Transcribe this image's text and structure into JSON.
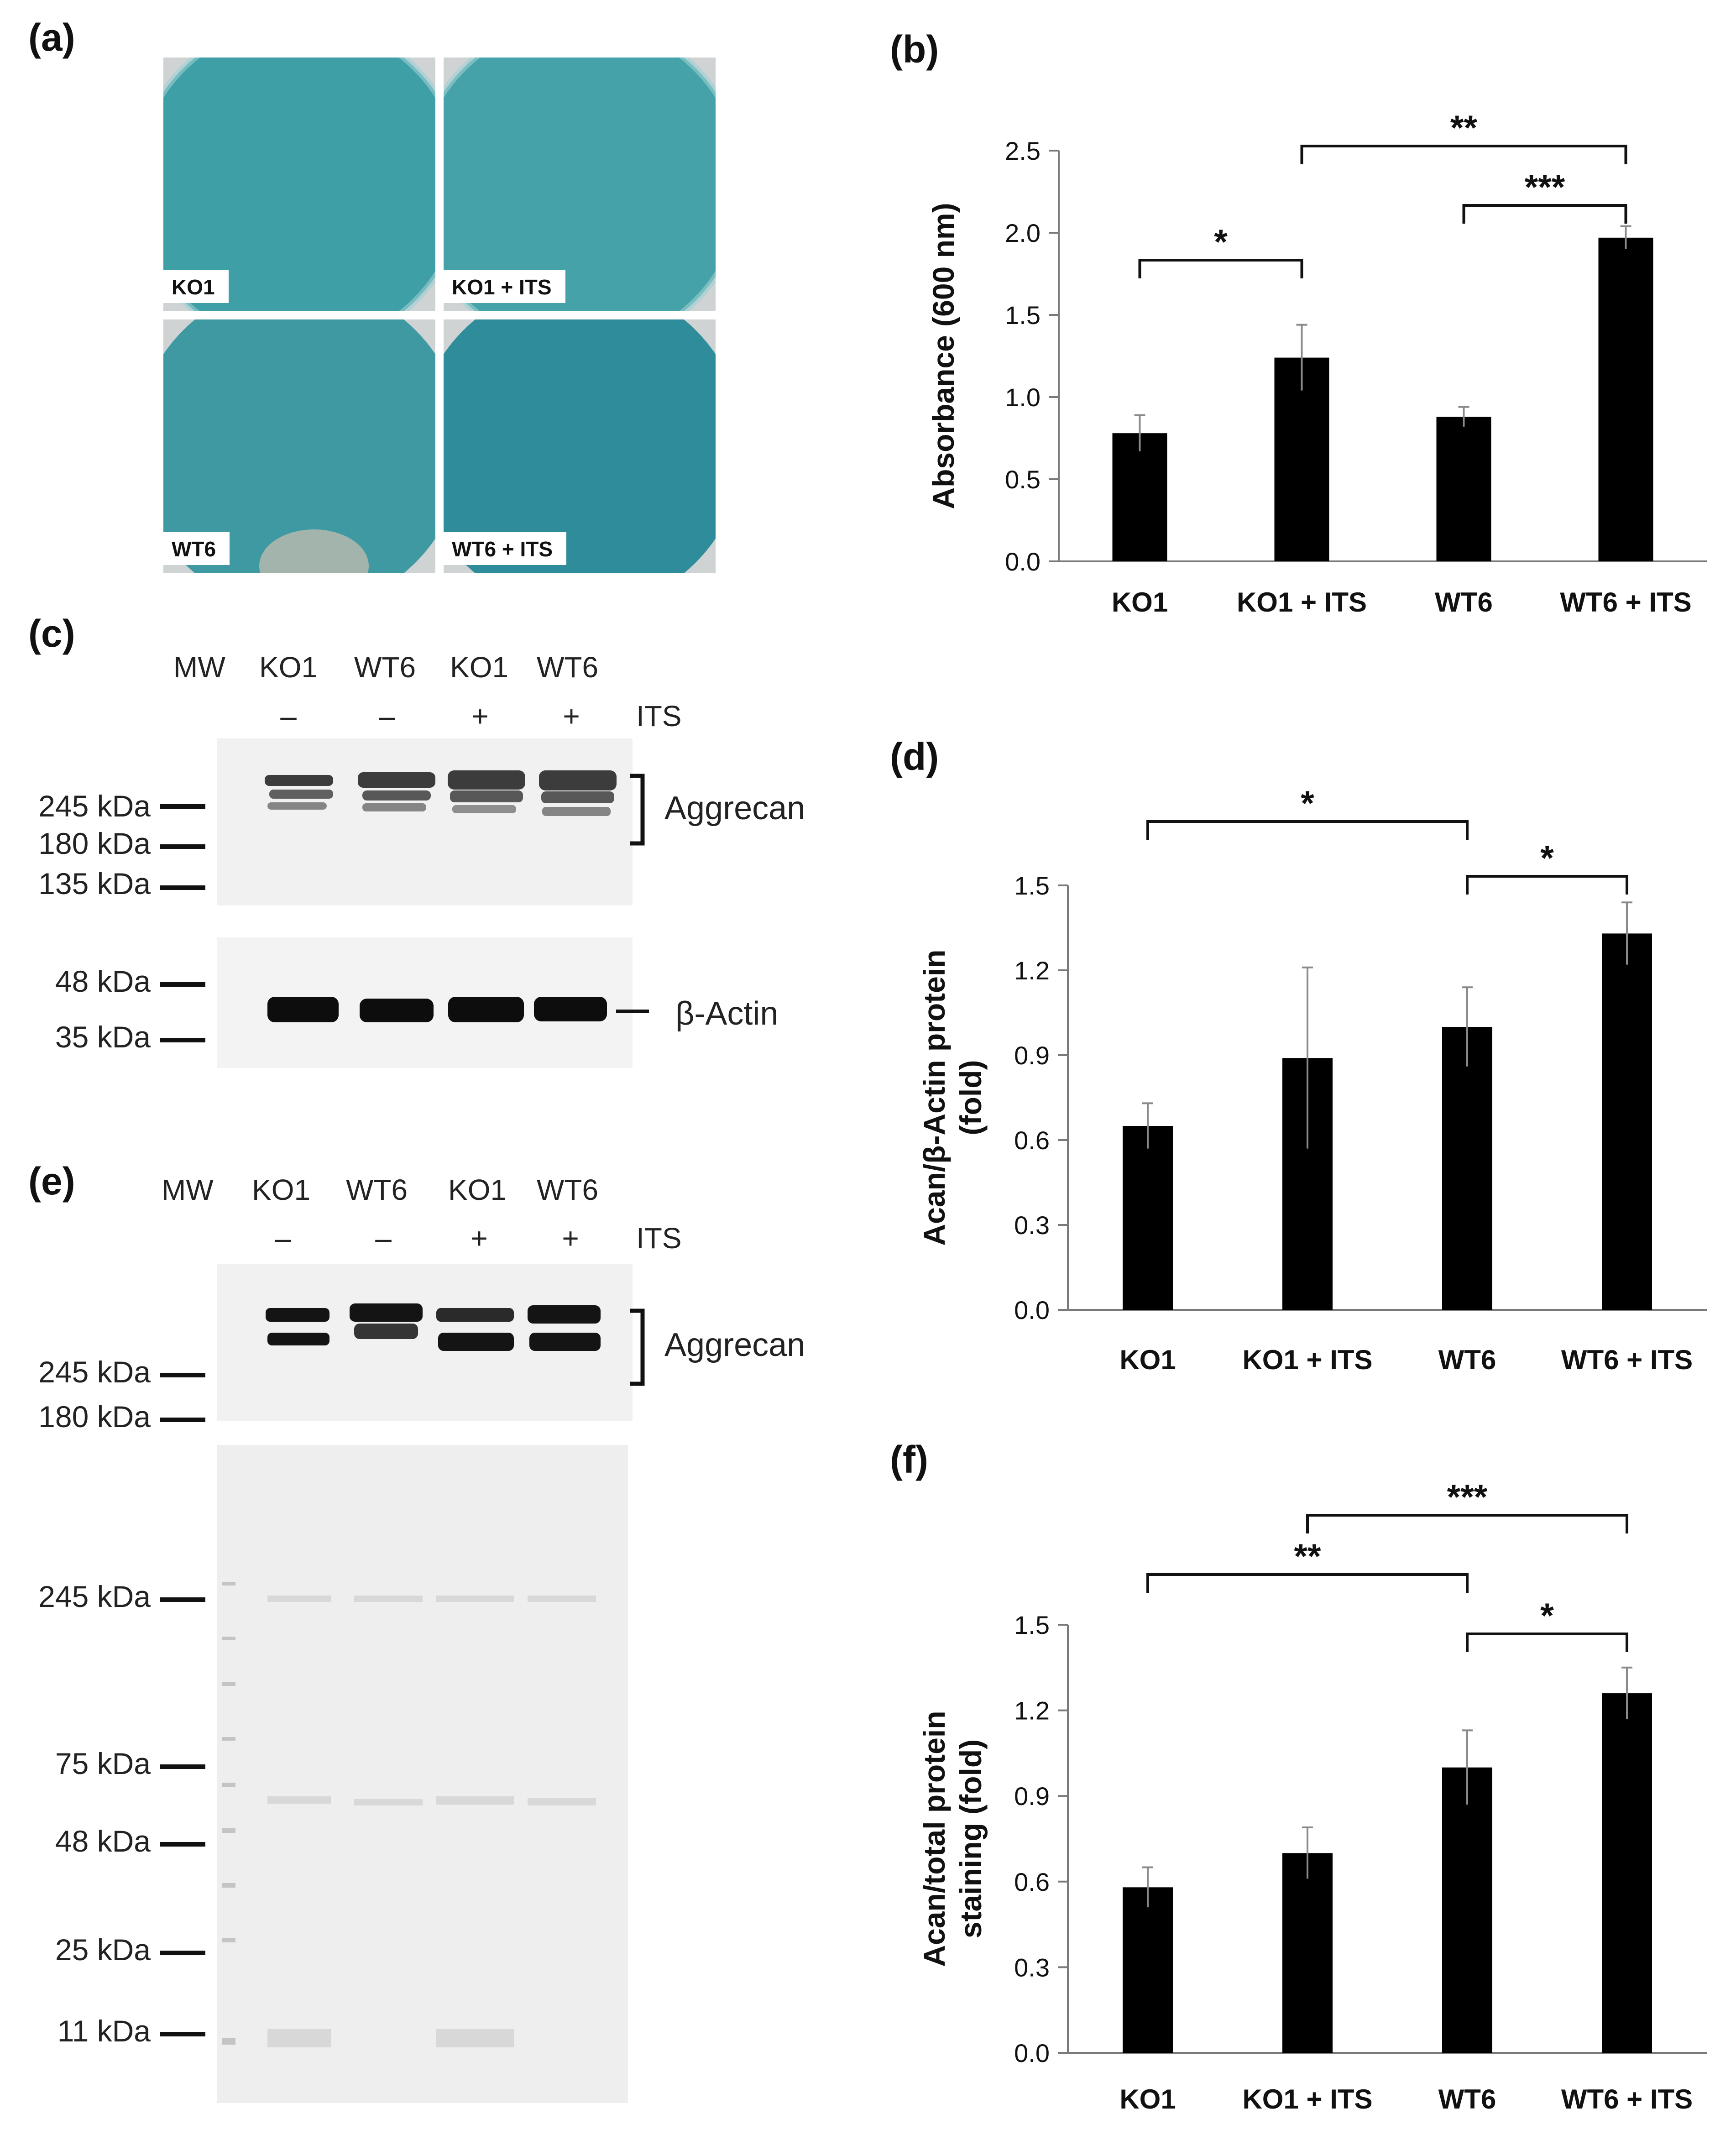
{
  "panels": {
    "a": {
      "label": "(a)",
      "dishes": [
        {
          "label": "KO1",
          "color": "#3e9fa6"
        },
        {
          "label": "KO1 + ITS",
          "color": "#44a2a8"
        },
        {
          "label": "WT6",
          "color": "#3f99a3"
        },
        {
          "label": "WT6 + ITS",
          "color": "#2f8c9a"
        }
      ]
    },
    "b": {
      "label": "(b)"
    },
    "c": {
      "label": "(c)",
      "lanes": [
        "MW",
        "KO1",
        "WT6",
        "KO1",
        "WT6"
      ],
      "signs": [
        "–",
        "–",
        "+",
        "+"
      ],
      "its_label": "ITS",
      "markers_top": [
        "245 kDa",
        "180 kDa",
        "135 kDa"
      ],
      "markers_bottom": [
        "48 kDa",
        "35 kDa"
      ],
      "band_label_top": "Aggrecan",
      "band_label_bottom": "β-Actin"
    },
    "d": {
      "label": "(d)"
    },
    "e": {
      "label": "(e)",
      "lanes": [
        "MW",
        "KO1",
        "WT6",
        "KO1",
        "WT6"
      ],
      "signs": [
        "–",
        "–",
        "+",
        "+"
      ],
      "its_label": "ITS",
      "markers_top": [
        "245 kDa",
        "180 kDa"
      ],
      "markers_bottom": [
        "245 kDa",
        "75 kDa",
        "48 kDa",
        "25 kDa",
        "11 kDa"
      ],
      "band_label_top": "Aggrecan"
    },
    "f": {
      "label": "(f)"
    }
  },
  "chart_data": [
    {
      "id": "b",
      "type": "bar",
      "categories": [
        "KO1",
        "KO1 + ITS",
        "WT6",
        "WT6 + ITS"
      ],
      "values": [
        0.78,
        1.24,
        0.88,
        1.97
      ],
      "errors": [
        0.11,
        0.2,
        0.06,
        0.07
      ],
      "ylabel_lines": [
        "Absorbance (600 nm)"
      ],
      "ylim": [
        0,
        2.5
      ],
      "yticks": [
        "0.0",
        "0.5",
        "1.0",
        "1.5",
        "2.0",
        "2.5"
      ],
      "significance": [
        {
          "from": 0,
          "to": 1,
          "text": "*"
        },
        {
          "from": 2,
          "to": 3,
          "text": "***"
        },
        {
          "from": 1,
          "to": 3,
          "text": "**"
        }
      ]
    },
    {
      "id": "d",
      "type": "bar",
      "categories": [
        "KO1",
        "KO1 + ITS",
        "WT6",
        "WT6 + ITS"
      ],
      "values": [
        0.65,
        0.89,
        1.0,
        1.33
      ],
      "errors": [
        0.08,
        0.32,
        0.14,
        0.11
      ],
      "ylabel_lines": [
        "Acan/β-Actin protein",
        "(fold)"
      ],
      "ylim": [
        0,
        1.5
      ],
      "yticks": [
        "0.0",
        "0.3",
        "0.6",
        "0.9",
        "1.2",
        "1.5"
      ],
      "significance": [
        {
          "from": 2,
          "to": 3,
          "text": "*"
        },
        {
          "from": 0,
          "to": 2,
          "text": "*"
        }
      ]
    },
    {
      "id": "f",
      "type": "bar",
      "categories": [
        "KO1",
        "KO1 + ITS",
        "WT6",
        "WT6 + ITS"
      ],
      "values": [
        0.58,
        0.7,
        1.0,
        1.26
      ],
      "errors": [
        0.07,
        0.09,
        0.13,
        0.09
      ],
      "ylabel_lines": [
        "Acan/total protein",
        "staining (fold)"
      ],
      "ylim": [
        0,
        1.5
      ],
      "yticks": [
        "0.0",
        "0.3",
        "0.6",
        "0.9",
        "1.2",
        "1.5"
      ],
      "significance": [
        {
          "from": 2,
          "to": 3,
          "text": "*"
        },
        {
          "from": 0,
          "to": 2,
          "text": "**"
        },
        {
          "from": 1,
          "to": 3,
          "text": "***"
        }
      ]
    }
  ]
}
